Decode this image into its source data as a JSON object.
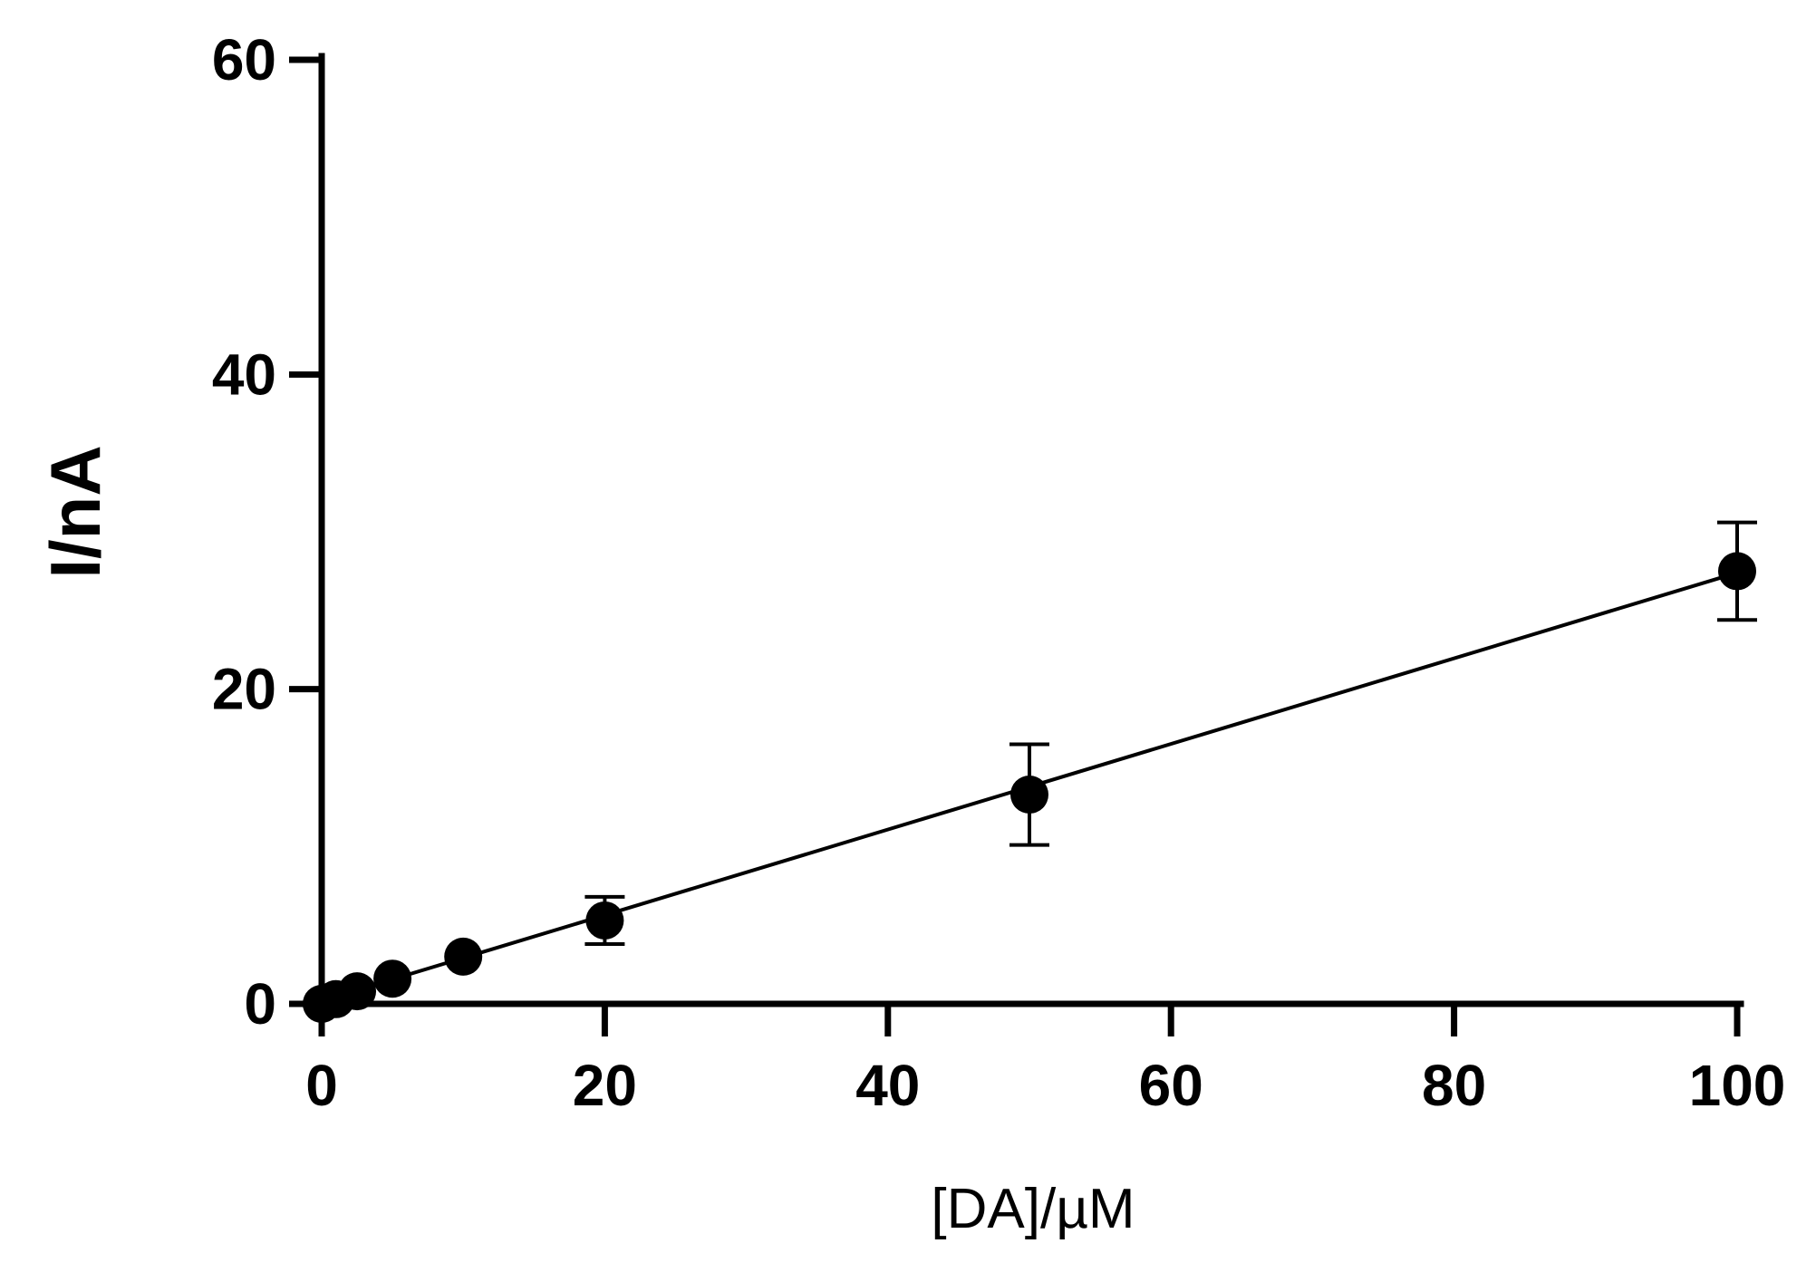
{
  "chart_data": {
    "type": "scatter",
    "title": "",
    "xlabel": "[DA]/µM",
    "ylabel": "I/nA",
    "xlim": [
      0,
      100
    ],
    "ylim": [
      0,
      60
    ],
    "x_ticks": [
      "0",
      "20",
      "40",
      "60",
      "80",
      "100"
    ],
    "y_ticks": [
      "0",
      "20",
      "40",
      "60"
    ],
    "grid": false,
    "legend": "none",
    "series": [
      {
        "points": [
          {
            "x": 0,
            "y": 0.0,
            "err": 0.0
          },
          {
            "x": 1,
            "y": 0.3,
            "err": 0.0
          },
          {
            "x": 2.5,
            "y": 0.8,
            "err": 0.0
          },
          {
            "x": 5,
            "y": 1.6,
            "err": 0.0
          },
          {
            "x": 10,
            "y": 3.0,
            "err": 0.0
          },
          {
            "x": 20,
            "y": 5.3,
            "err": 1.5
          },
          {
            "x": 50,
            "y": 13.3,
            "err": 3.2
          },
          {
            "x": 100,
            "y": 27.5,
            "err": 3.1
          }
        ]
      }
    ],
    "fit_line": {
      "x_start": 0,
      "x_end": 100,
      "slope": 0.272,
      "intercept": 0.2
    },
    "marker_color": "#000000",
    "line_color": "#000000"
  }
}
